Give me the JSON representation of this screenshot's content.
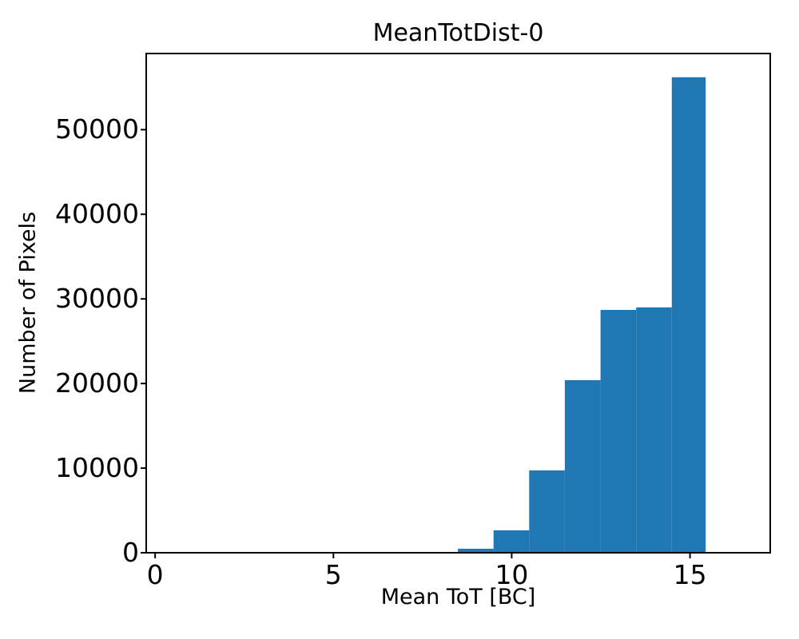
{
  "chart_data": {
    "type": "bar",
    "title": "MeanTotDist-0",
    "xlabel": "Mean ToT [BC]",
    "ylabel": "Number of Pixels",
    "bar_color": "#1f77b4",
    "axis_color": "#000000",
    "background_color": "#ffffff",
    "grid": false,
    "legend": null,
    "xlim": [
      -0.25,
      17.25
    ],
    "ylim": [
      0,
      59000
    ],
    "xticks": [
      0,
      5,
      10,
      15
    ],
    "yticks": [
      0,
      10000,
      20000,
      30000,
      40000,
      50000
    ],
    "bin_edges": [
      8.49,
      9.49,
      10.49,
      11.49,
      12.49,
      13.49,
      14.49,
      15.44
    ],
    "counts": [
      470,
      2650,
      9730,
      20400,
      28700,
      29000,
      56200
    ]
  }
}
